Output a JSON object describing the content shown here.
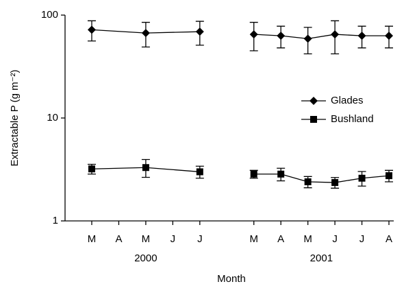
{
  "chart_data": {
    "type": "line",
    "y_label": "Extractable P (g m⁻²)",
    "x_label": "Month",
    "categories": [
      "M",
      "A",
      "M",
      "J",
      "J",
      null,
      "M",
      "A",
      "M",
      "J",
      "J",
      "A"
    ],
    "groups": [
      "2000",
      "2001"
    ],
    "ylim": [
      1,
      100
    ],
    "yticks": [
      1,
      10,
      100
    ],
    "log_scale": true,
    "grid": false,
    "legend": "right",
    "series": [
      {
        "name": "Glades",
        "color": "#000000",
        "marker": "diamond",
        "values": [
          72,
          null,
          67,
          null,
          69,
          null,
          65,
          63,
          59,
          65,
          63,
          63
        ],
        "errors": [
          16,
          null,
          18,
          null,
          18,
          null,
          20,
          15,
          17,
          23,
          15,
          15
        ]
      },
      {
        "name": "Bushland",
        "color": "#000000",
        "marker": "square",
        "values": [
          3.2,
          null,
          3.3,
          null,
          3.0,
          null,
          2.85,
          2.85,
          2.4,
          2.36,
          2.6,
          2.75
        ],
        "errors": [
          0.35,
          null,
          0.65,
          null,
          0.4,
          null,
          0.25,
          0.4,
          0.3,
          0.28,
          0.42,
          0.35
        ]
      }
    ]
  }
}
